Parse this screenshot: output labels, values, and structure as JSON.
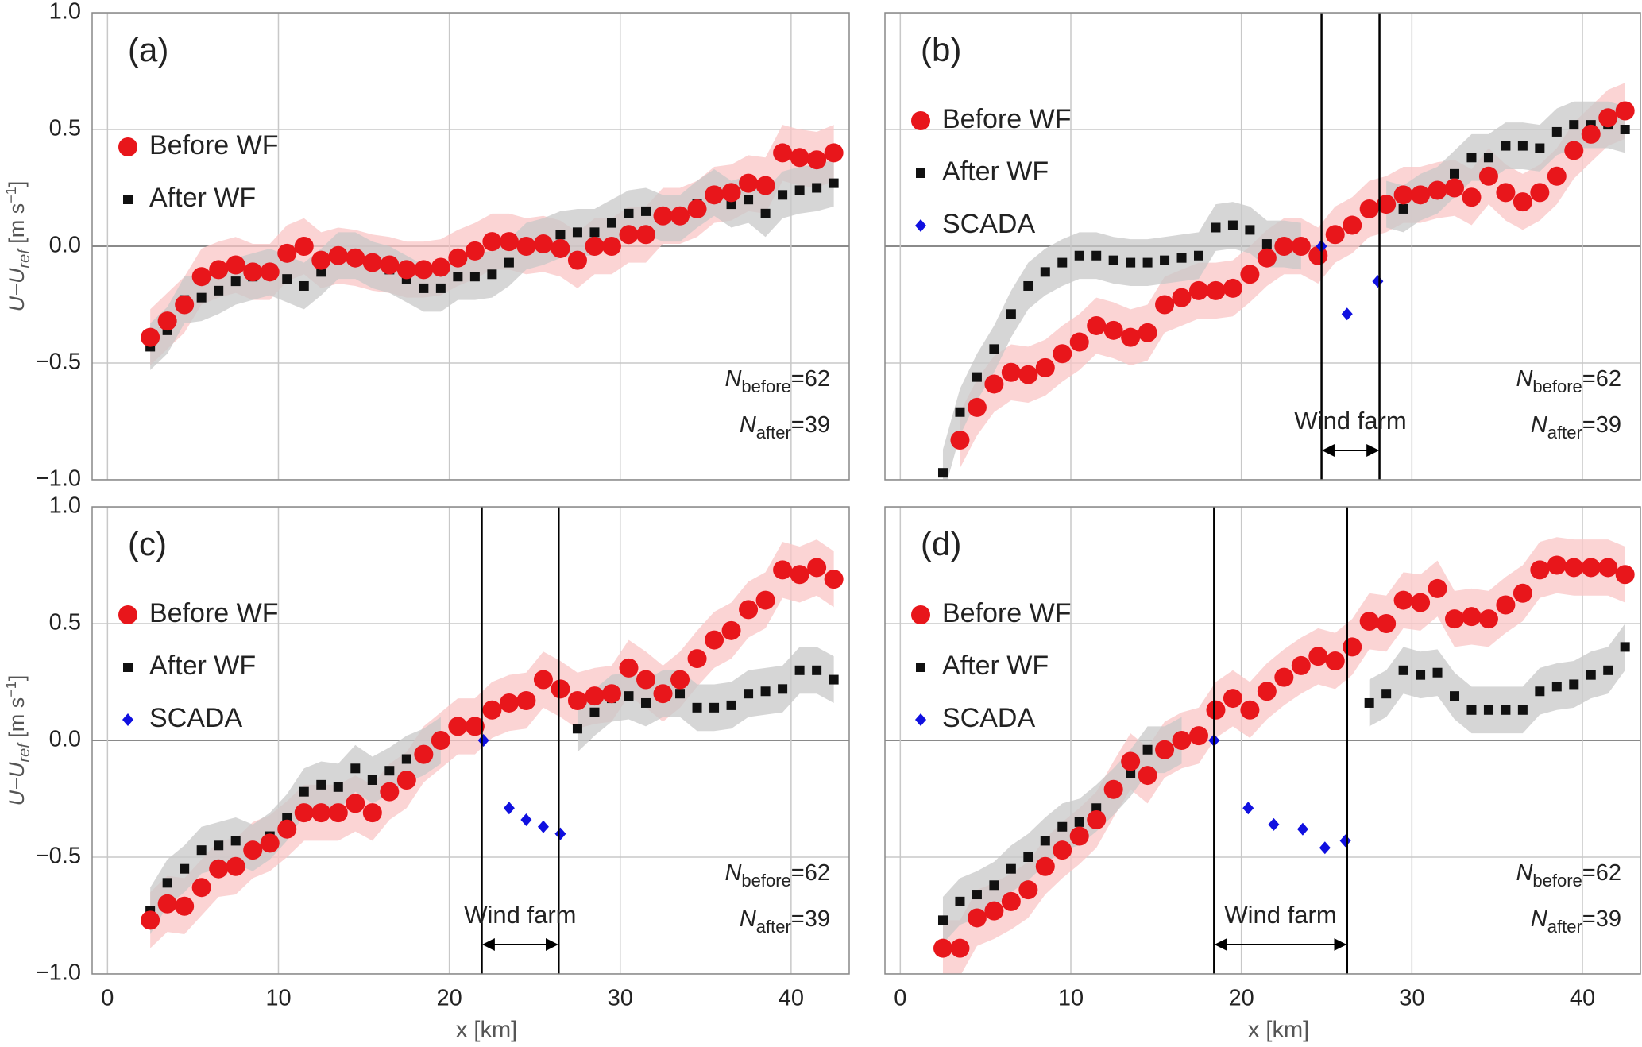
{
  "chart_data": [
    {
      "type": "scatter",
      "panel": "(a)",
      "xlim": [
        -0.9,
        43.4
      ],
      "xticks": [
        0,
        10,
        20,
        30,
        40
      ],
      "ylim": [
        -1,
        1
      ],
      "yticks": [
        {
          "value": -1,
          "label": "−1.0"
        },
        {
          "value": -0.5,
          "label": "−0.5"
        },
        {
          "value": 0,
          "label": "0.0"
        },
        {
          "value": 0.5,
          "label": "0.5"
        },
        {
          "value": 1,
          "label": "1.0"
        }
      ],
      "tick_labels": {
        "x": false,
        "y": true
      },
      "grid": true,
      "ylabel": {
        "text": "U−U",
        "sub": "ref",
        "unit": " [m s",
        "sup": "−1",
        "end": "]"
      },
      "x": [
        2.5,
        3.5,
        4.5,
        5.5,
        6.5,
        7.5,
        8.5,
        9.5,
        10.5,
        11.5,
        12.5,
        13.5,
        14.5,
        15.5,
        16.5,
        17.5,
        18.5,
        19.5,
        20.5,
        21.5,
        22.5,
        23.5,
        24.5,
        25.5,
        26.5,
        27.5,
        28.5,
        29.5,
        30.5,
        31.5,
        32.5,
        33.5,
        34.5,
        35.5,
        36.5,
        37.5,
        38.5,
        39.5,
        40.5,
        41.5,
        42.5
      ],
      "series": [
        {
          "name": "Before WF",
          "color": "#e8161b",
          "band_color": "#f9c6c6",
          "marker": "circle",
          "band": 0.12,
          "values": [
            -0.39,
            -0.32,
            -0.25,
            -0.13,
            -0.1,
            -0.08,
            -0.11,
            -0.11,
            -0.03,
            0.0,
            -0.06,
            -0.04,
            -0.05,
            -0.07,
            -0.08,
            -0.1,
            -0.1,
            -0.09,
            -0.05,
            -0.02,
            0.02,
            0.02,
            0.0,
            0.01,
            -0.01,
            -0.06,
            0.0,
            0.0,
            0.05,
            0.05,
            0.13,
            0.13,
            0.16,
            0.22,
            0.23,
            0.27,
            0.26,
            0.4,
            0.38,
            0.37,
            0.4
          ]
        },
        {
          "name": "After WF",
          "color": "#111111",
          "band_color": "#c8c8c8",
          "marker": "square",
          "band": 0.1,
          "values": [
            -0.43,
            -0.36,
            -0.23,
            -0.22,
            -0.19,
            -0.15,
            -0.13,
            -0.11,
            -0.14,
            -0.17,
            -0.11,
            -0.04,
            -0.04,
            -0.08,
            -0.1,
            -0.14,
            -0.18,
            -0.18,
            -0.13,
            -0.13,
            -0.12,
            -0.07,
            0.0,
            0.02,
            0.05,
            0.06,
            0.06,
            0.1,
            0.14,
            0.15,
            0.12,
            0.12,
            0.18,
            0.23,
            0.18,
            0.2,
            0.14,
            0.22,
            0.24,
            0.25,
            0.27
          ]
        }
      ],
      "annotations": [
        {
          "text": "N",
          "sub": "before",
          "suffix": "=62"
        },
        {
          "text": "N",
          "sub": "after",
          "suffix": "=39"
        }
      ]
    },
    {
      "type": "scatter",
      "panel": "(b)",
      "xlim": [
        -0.9,
        43.4
      ],
      "xticks": [
        0,
        10,
        20,
        30,
        40
      ],
      "ylim": [
        -1,
        1
      ],
      "yticks": [
        {
          "value": -1,
          "label": "−1.0"
        },
        {
          "value": -0.5,
          "label": "−0.5"
        },
        {
          "value": 0,
          "label": "0.0"
        },
        {
          "value": 0.5,
          "label": "0.5"
        },
        {
          "value": 1,
          "label": "1.0"
        }
      ],
      "tick_labels": {
        "x": false,
        "y": false
      },
      "grid": true,
      "x": [
        2.5,
        3.5,
        4.5,
        5.5,
        6.5,
        7.5,
        8.5,
        9.5,
        10.5,
        11.5,
        12.5,
        13.5,
        14.5,
        15.5,
        16.5,
        17.5,
        18.5,
        19.5,
        20.5,
        21.5,
        22.5,
        23.5,
        24.5,
        25.5,
        26.5,
        27.5,
        28.5,
        29.5,
        30.5,
        31.5,
        32.5,
        33.5,
        34.5,
        35.5,
        36.5,
        37.5,
        38.5,
        39.5,
        40.5,
        41.5,
        42.5
      ],
      "series": [
        {
          "name": "Before WF",
          "color": "#e8161b",
          "band_color": "#f9c6c6",
          "marker": "circle",
          "band": 0.12,
          "values": [
            null,
            -0.83,
            -0.69,
            -0.59,
            -0.54,
            -0.55,
            -0.52,
            -0.46,
            -0.41,
            -0.34,
            -0.36,
            -0.39,
            -0.37,
            -0.25,
            -0.22,
            -0.19,
            -0.19,
            -0.18,
            -0.12,
            -0.05,
            0.0,
            0.0,
            -0.04,
            0.05,
            0.09,
            0.16,
            0.18,
            0.22,
            0.22,
            0.24,
            0.25,
            0.21,
            0.3,
            0.23,
            0.19,
            0.23,
            0.3,
            0.41,
            0.48,
            0.55,
            0.58
          ]
        },
        {
          "name": "After WF",
          "color": "#111111",
          "band_color": "#c8c8c8",
          "marker": "square",
          "band": 0.1,
          "values": [
            -0.97,
            -0.71,
            -0.56,
            -0.44,
            -0.29,
            -0.17,
            -0.11,
            -0.07,
            -0.04,
            -0.04,
            -0.06,
            -0.07,
            -0.07,
            -0.06,
            -0.05,
            -0.04,
            0.08,
            0.09,
            0.07,
            0.01,
            0.01,
            0.0,
            null,
            null,
            null,
            null,
            0.18,
            0.16,
            0.21,
            0.24,
            0.31,
            0.38,
            0.38,
            0.43,
            0.43,
            0.42,
            0.49,
            0.52,
            0.52,
            0.52,
            0.5
          ]
        },
        {
          "name": "SCADA",
          "color": "#1010e0",
          "marker": "diamond",
          "x": [
            24.7,
            26.2,
            28.0
          ],
          "values": [
            0.0,
            -0.29,
            -0.15
          ]
        }
      ],
      "wind_farm": {
        "label": "Wind farm",
        "x": [
          24.7,
          28.1
        ]
      },
      "annotations": [
        {
          "text": "N",
          "sub": "before",
          "suffix": "=62"
        },
        {
          "text": "N",
          "sub": "after",
          "suffix": "=39"
        }
      ]
    },
    {
      "type": "scatter",
      "panel": "(c)",
      "xlim": [
        -0.9,
        43.4
      ],
      "xticks": [
        0,
        10,
        20,
        30,
        40
      ],
      "ylim": [
        -1,
        1
      ],
      "yticks": [
        {
          "value": -1,
          "label": "−1.0"
        },
        {
          "value": -0.5,
          "label": "−0.5"
        },
        {
          "value": 0,
          "label": "0.0"
        },
        {
          "value": 0.5,
          "label": "0.5"
        },
        {
          "value": 1,
          "label": "1.0"
        }
      ],
      "tick_labels": {
        "x": true,
        "y": true
      },
      "grid": true,
      "xlabel": "x [km]",
      "ylabel": {
        "text": "U−U",
        "sub": "ref",
        "unit": " [m s",
        "sup": "−1",
        "end": "]"
      },
      "x": [
        2.5,
        3.5,
        4.5,
        5.5,
        6.5,
        7.5,
        8.5,
        9.5,
        10.5,
        11.5,
        12.5,
        13.5,
        14.5,
        15.5,
        16.5,
        17.5,
        18.5,
        19.5,
        20.5,
        21.5,
        22.5,
        23.5,
        24.5,
        25.5,
        26.5,
        27.5,
        28.5,
        29.5,
        30.5,
        31.5,
        32.5,
        33.5,
        34.5,
        35.5,
        36.5,
        37.5,
        38.5,
        39.5,
        40.5,
        41.5,
        42.5
      ],
      "series": [
        {
          "name": "Before WF",
          "color": "#e8161b",
          "band_color": "#f9c6c6",
          "marker": "circle",
          "band": 0.12,
          "values": [
            -0.77,
            -0.7,
            -0.71,
            -0.63,
            -0.55,
            -0.54,
            -0.47,
            -0.44,
            -0.38,
            -0.31,
            -0.31,
            -0.31,
            -0.27,
            -0.31,
            -0.22,
            -0.17,
            -0.06,
            0.0,
            0.06,
            0.06,
            0.13,
            0.16,
            0.17,
            0.26,
            0.22,
            0.17,
            0.19,
            0.2,
            0.31,
            0.26,
            0.2,
            0.26,
            0.35,
            0.43,
            0.47,
            0.56,
            0.6,
            0.73,
            0.71,
            0.74,
            0.69
          ]
        },
        {
          "name": "After WF",
          "color": "#111111",
          "band_color": "#c8c8c8",
          "marker": "square",
          "band": 0.1,
          "values": [
            -0.73,
            -0.61,
            -0.55,
            -0.47,
            -0.45,
            -0.43,
            -0.46,
            -0.41,
            -0.33,
            -0.22,
            -0.19,
            -0.2,
            -0.12,
            -0.17,
            -0.13,
            -0.08,
            -0.05,
            0.0,
            null,
            null,
            null,
            null,
            null,
            null,
            null,
            0.05,
            0.12,
            0.18,
            0.19,
            0.16,
            0.2,
            0.2,
            0.14,
            0.14,
            0.15,
            0.2,
            0.21,
            0.22,
            0.3,
            0.3,
            0.26
          ]
        },
        {
          "name": "SCADA",
          "color": "#1010e0",
          "marker": "diamond",
          "x": [
            22.0,
            23.5,
            24.5,
            25.5,
            26.5
          ],
          "values": [
            0.0,
            -0.29,
            -0.34,
            -0.37,
            -0.4
          ]
        }
      ],
      "wind_farm": {
        "label": "Wind farm",
        "x": [
          21.9,
          26.4
        ]
      },
      "annotations": [
        {
          "text": "N",
          "sub": "before",
          "suffix": "=62"
        },
        {
          "text": "N",
          "sub": "after",
          "suffix": "=39"
        }
      ]
    },
    {
      "type": "scatter",
      "panel": "(d)",
      "xlim": [
        -0.9,
        43.4
      ],
      "xticks": [
        0,
        10,
        20,
        30,
        40
      ],
      "ylim": [
        -1,
        1
      ],
      "yticks": [
        {
          "value": -1,
          "label": "−1.0"
        },
        {
          "value": -0.5,
          "label": "−0.5"
        },
        {
          "value": 0,
          "label": "0.0"
        },
        {
          "value": 0.5,
          "label": "0.5"
        },
        {
          "value": 1,
          "label": "1.0"
        }
      ],
      "tick_labels": {
        "x": true,
        "y": false
      },
      "grid": true,
      "xlabel": "x [km]",
      "x": [
        2.5,
        3.5,
        4.5,
        5.5,
        6.5,
        7.5,
        8.5,
        9.5,
        10.5,
        11.5,
        12.5,
        13.5,
        14.5,
        15.5,
        16.5,
        17.5,
        18.5,
        19.5,
        20.5,
        21.5,
        22.5,
        23.5,
        24.5,
        25.5,
        26.5,
        27.5,
        28.5,
        29.5,
        30.5,
        31.5,
        32.5,
        33.5,
        34.5,
        35.5,
        36.5,
        37.5,
        38.5,
        39.5,
        40.5,
        41.5,
        42.5
      ],
      "series": [
        {
          "name": "Before WF",
          "color": "#e8161b",
          "band_color": "#f9c6c6",
          "marker": "circle",
          "band": 0.12,
          "values": [
            -0.89,
            -0.89,
            -0.76,
            -0.73,
            -0.69,
            -0.64,
            -0.54,
            -0.47,
            -0.41,
            -0.34,
            -0.21,
            -0.09,
            -0.15,
            -0.04,
            0.0,
            0.02,
            0.13,
            0.18,
            0.13,
            0.21,
            0.27,
            0.32,
            0.36,
            0.34,
            0.4,
            0.51,
            0.5,
            0.6,
            0.59,
            0.65,
            0.52,
            0.53,
            0.52,
            0.58,
            0.63,
            0.73,
            0.75,
            0.74,
            0.74,
            0.74,
            0.71
          ]
        },
        {
          "name": "After WF",
          "color": "#111111",
          "band_color": "#c8c8c8",
          "marker": "square",
          "band": 0.1,
          "values": [
            -0.77,
            -0.69,
            -0.66,
            -0.62,
            -0.55,
            -0.5,
            -0.43,
            -0.37,
            -0.35,
            -0.29,
            -0.22,
            -0.14,
            -0.04,
            -0.04,
            0.0,
            null,
            null,
            null,
            null,
            null,
            null,
            null,
            null,
            null,
            null,
            0.16,
            0.2,
            0.3,
            0.28,
            0.29,
            0.19,
            0.13,
            0.13,
            0.13,
            0.13,
            0.21,
            0.23,
            0.24,
            0.28,
            0.3,
            0.4
          ]
        },
        {
          "name": "SCADA",
          "color": "#1010e0",
          "marker": "diamond",
          "x": [
            18.4,
            20.4,
            21.9,
            23.6,
            24.9,
            26.1
          ],
          "values": [
            0.0,
            -0.29,
            -0.36,
            -0.38,
            -0.46,
            -0.43
          ]
        }
      ],
      "wind_farm": {
        "label": "Wind farm",
        "x": [
          18.4,
          26.2
        ]
      },
      "annotations": [
        {
          "text": "N",
          "sub": "before",
          "suffix": "=62"
        },
        {
          "text": "N",
          "sub": "after",
          "suffix": "=39"
        }
      ]
    }
  ]
}
